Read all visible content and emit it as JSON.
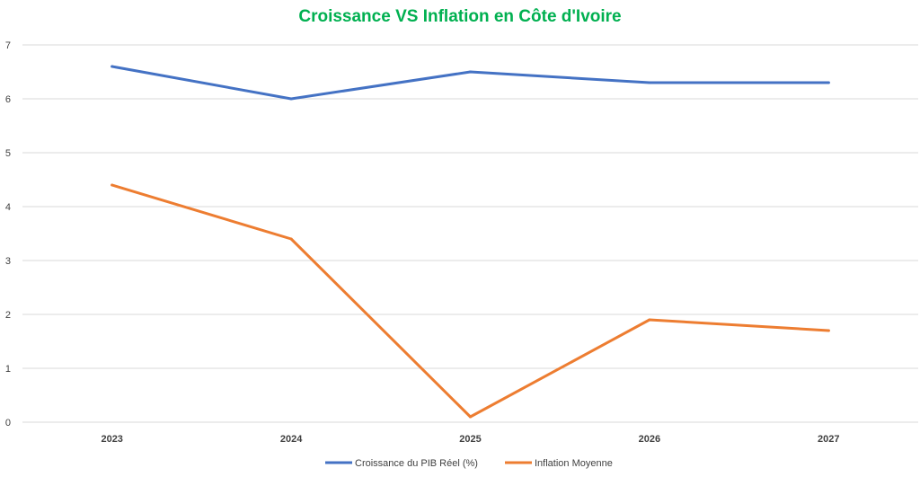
{
  "chart_data": {
    "type": "line",
    "title": "Croissance VS Inflation en Côte d'Ivoire",
    "title_color": "#00B050",
    "categories": [
      "2023",
      "2024",
      "2025",
      "2026",
      "2027"
    ],
    "series": [
      {
        "name": "Croissance du PIB Réel (%)",
        "color": "#4472C4",
        "values": [
          6.6,
          6.0,
          6.5,
          6.3,
          6.3
        ]
      },
      {
        "name": "Inflation Moyenne",
        "color": "#ED7D31",
        "values": [
          4.4,
          3.4,
          0.1,
          1.9,
          1.7
        ]
      }
    ],
    "ylim": [
      0,
      7
    ],
    "yticks": [
      "0",
      "1",
      "2",
      "3",
      "4",
      "5",
      "6",
      "7"
    ],
    "xlabel": "",
    "ylabel": "",
    "grid": true,
    "legend_position": "bottom"
  }
}
